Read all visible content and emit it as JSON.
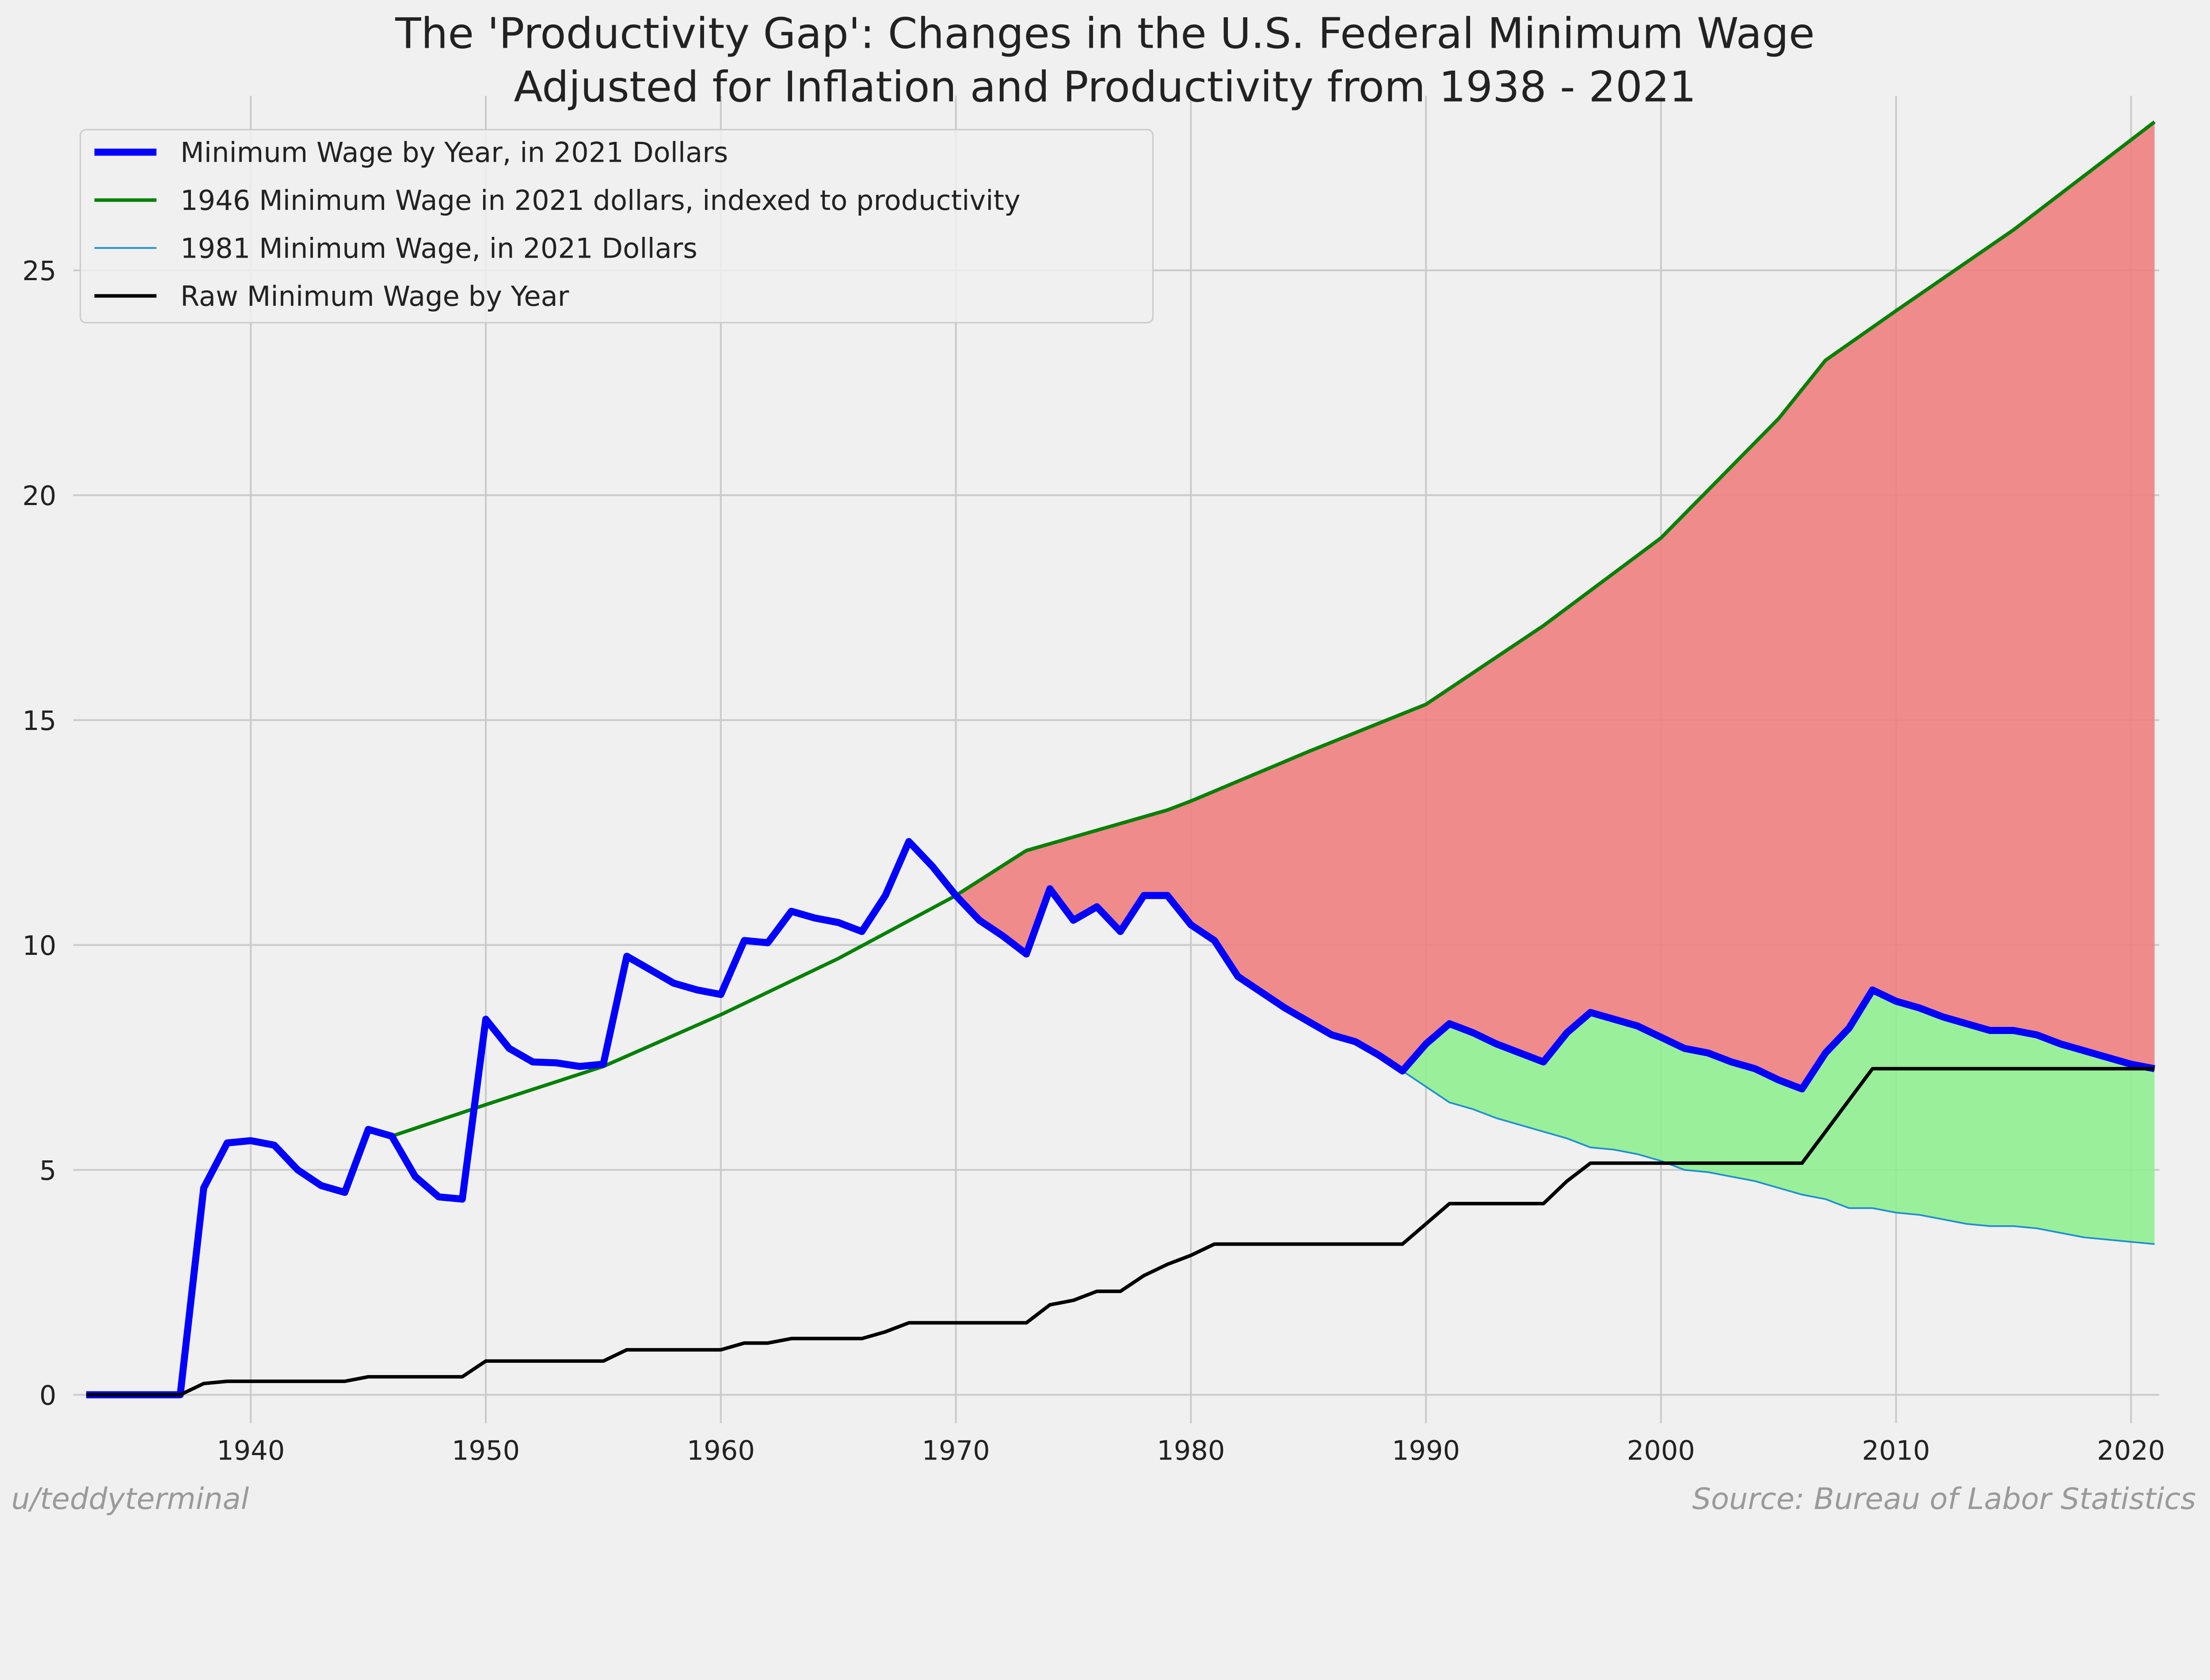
{
  "chart_data": {
    "type": "line",
    "title": "The 'Productivity Gap': Changes in the U.S. Federal Minimum Wage\nAdjusted for Inflation and Productivity from 1938 - 2021",
    "xlabel": "",
    "ylabel": "",
    "xlim": [
      1932.45,
      2021.2
    ],
    "ylim": [
      -0.63,
      28.88
    ],
    "xticks": [
      1940,
      1950,
      1960,
      1970,
      1980,
      1990,
      2000,
      2010,
      2020
    ],
    "yticks": [
      0,
      5,
      10,
      15,
      20,
      25
    ],
    "grid": true,
    "legend_position": "top-left",
    "series": [
      {
        "name": "Minimum Wage by Year, in 2021 Dollars",
        "color": "#0000ff",
        "x": [
          1933,
          1934,
          1935,
          1936,
          1937,
          1938,
          1939,
          1940,
          1941,
          1942,
          1943,
          1944,
          1945,
          1946,
          1947,
          1948,
          1949,
          1950,
          1951,
          1952,
          1953,
          1954,
          1955,
          1956,
          1957,
          1958,
          1959,
          1960,
          1961,
          1962,
          1963,
          1964,
          1965,
          1966,
          1967,
          1968,
          1969,
          1970,
          1971,
          1972,
          1973,
          1974,
          1975,
          1976,
          1977,
          1978,
          1979,
          1980,
          1981,
          1982,
          1983,
          1984,
          1985,
          1986,
          1987,
          1988,
          1989,
          1990,
          1991,
          1992,
          1993,
          1994,
          1995,
          1996,
          1997,
          1998,
          1999,
          2000,
          2001,
          2002,
          2003,
          2004,
          2005,
          2006,
          2007,
          2008,
          2009,
          2010,
          2011,
          2012,
          2013,
          2014,
          2015,
          2016,
          2017,
          2018,
          2019,
          2020,
          2021
        ],
        "y": [
          0,
          0,
          0,
          0,
          0,
          4.6,
          5.6,
          5.65,
          5.55,
          5.0,
          4.65,
          4.5,
          5.9,
          5.75,
          4.85,
          4.4,
          4.35,
          8.35,
          7.7,
          7.4,
          7.38,
          7.3,
          7.35,
          9.75,
          9.45,
          9.15,
          9.0,
          8.9,
          10.1,
          10.05,
          10.75,
          10.6,
          10.5,
          10.3,
          11.1,
          12.3,
          11.75,
          11.1,
          10.55,
          10.2,
          9.8,
          11.25,
          10.55,
          10.85,
          10.3,
          11.1,
          11.1,
          10.45,
          10.1,
          9.3,
          8.95,
          8.6,
          8.3,
          8.0,
          7.85,
          7.55,
          7.2,
          7.8,
          8.25,
          8.05,
          7.8,
          7.6,
          7.4,
          8.05,
          8.5,
          8.35,
          8.2,
          7.95,
          7.7,
          7.6,
          7.4,
          7.25,
          7.0,
          6.8,
          7.6,
          8.15,
          9.0,
          8.75,
          8.6,
          8.4,
          8.25,
          8.1,
          8.1,
          8.0,
          7.8,
          7.65,
          7.5,
          7.35,
          7.25
        ]
      },
      {
        "name": "1946 Minimum Wage in 2021 dollars, indexed to productivity",
        "color": "#008000",
        "x": [
          1946,
          1950,
          1955,
          1960,
          1965,
          1970,
          1973,
          1979,
          1980,
          1985,
          1990,
          1995,
          2000,
          2005,
          2007,
          2010,
          2015,
          2021
        ],
        "y": [
          5.75,
          6.45,
          7.3,
          8.45,
          9.7,
          11.1,
          12.1,
          13.0,
          13.2,
          14.3,
          15.35,
          17.1,
          19.05,
          21.7,
          23.0,
          24.1,
          25.9,
          28.3
        ]
      },
      {
        "name": "1981 Minimum Wage, in 2021 Dollars",
        "color": "#1f8fd0",
        "x": [
          1989,
          1990,
          1991,
          1992,
          1993,
          1994,
          1995,
          1996,
          1997,
          1998,
          1999,
          2000,
          2001,
          2002,
          2003,
          2004,
          2005,
          2006,
          2007,
          2008,
          2009,
          2010,
          2011,
          2012,
          2013,
          2014,
          2015,
          2016,
          2017,
          2018,
          2019,
          2020,
          2021
        ],
        "y": [
          7.2,
          6.85,
          6.5,
          6.35,
          6.15,
          6.0,
          5.85,
          5.7,
          5.5,
          5.45,
          5.35,
          5.2,
          5.0,
          4.95,
          4.85,
          4.75,
          4.6,
          4.45,
          4.35,
          4.15,
          4.15,
          4.05,
          4.0,
          3.9,
          3.8,
          3.75,
          3.75,
          3.7,
          3.6,
          3.5,
          3.45,
          3.4,
          3.35
        ]
      },
      {
        "name": "Raw Minimum Wage by Year",
        "color": "#000000",
        "x": [
          1933,
          1934,
          1935,
          1936,
          1937,
          1938,
          1939,
          1940,
          1941,
          1942,
          1943,
          1944,
          1945,
          1946,
          1947,
          1948,
          1949,
          1950,
          1951,
          1952,
          1953,
          1954,
          1955,
          1956,
          1957,
          1958,
          1959,
          1960,
          1961,
          1962,
          1963,
          1964,
          1965,
          1966,
          1967,
          1968,
          1969,
          1970,
          1971,
          1972,
          1973,
          1974,
          1975,
          1976,
          1977,
          1978,
          1979,
          1980,
          1981,
          1982,
          1983,
          1984,
          1985,
          1986,
          1987,
          1988,
          1989,
          1990,
          1991,
          1992,
          1993,
          1994,
          1995,
          1996,
          1997,
          1998,
          1999,
          2000,
          2001,
          2002,
          2003,
          2004,
          2005,
          2006,
          2007,
          2008,
          2009,
          2010,
          2011,
          2012,
          2013,
          2014,
          2015,
          2016,
          2017,
          2018,
          2019,
          2020,
          2021
        ],
        "y": [
          0,
          0,
          0,
          0,
          0,
          0.25,
          0.3,
          0.3,
          0.3,
          0.3,
          0.3,
          0.3,
          0.4,
          0.4,
          0.4,
          0.4,
          0.4,
          0.75,
          0.75,
          0.75,
          0.75,
          0.75,
          0.75,
          1.0,
          1.0,
          1.0,
          1.0,
          1.0,
          1.15,
          1.15,
          1.25,
          1.25,
          1.25,
          1.25,
          1.4,
          1.6,
          1.6,
          1.6,
          1.6,
          1.6,
          1.6,
          2.0,
          2.1,
          2.3,
          2.3,
          2.65,
          2.9,
          3.1,
          3.35,
          3.35,
          3.35,
          3.35,
          3.35,
          3.35,
          3.35,
          3.35,
          3.35,
          3.8,
          4.25,
          4.25,
          4.25,
          4.25,
          4.25,
          4.75,
          5.15,
          5.15,
          5.15,
          5.15,
          5.15,
          5.15,
          5.15,
          5.15,
          5.15,
          5.15,
          5.85,
          6.55,
          7.25,
          7.25,
          7.25,
          7.25,
          7.25,
          7.25,
          7.25,
          7.25,
          7.25,
          7.25,
          7.25,
          7.25,
          7.25
        ]
      }
    ],
    "fills": [
      {
        "between": [
          "1946 Minimum Wage in 2021 dollars, indexed to productivity",
          "Minimum Wage by Year, in 2021 Dollars"
        ],
        "from": 1970,
        "to": 2021,
        "color": "#f08080"
      },
      {
        "between": [
          "Minimum Wage by Year, in 2021 Dollars",
          "1981 Minimum Wage, in 2021 Dollars"
        ],
        "from": 1989,
        "to": 2021,
        "color": "#90ee90"
      }
    ]
  },
  "footer": {
    "author": "u/teddyterminal",
    "source": "Source: Bureau of Labor Statistics"
  },
  "colors": {
    "background": "#f0f0f0",
    "grid": "#cbcbcb"
  }
}
